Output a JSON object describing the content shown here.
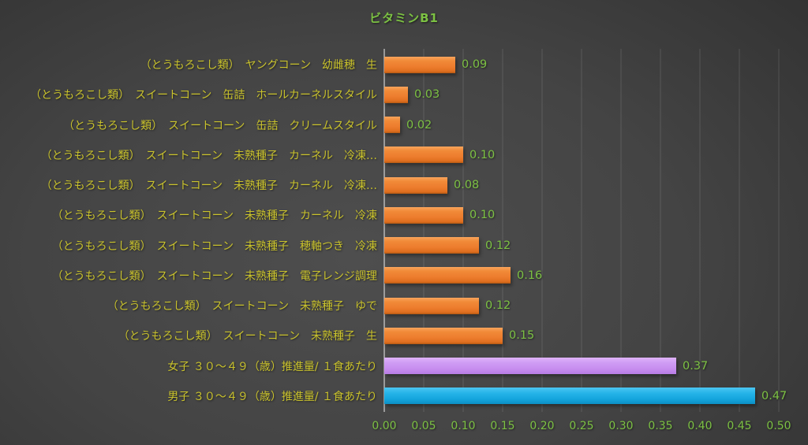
{
  "chart_data": {
    "type": "bar",
    "orientation": "horizontal",
    "title": "ビタミンB1",
    "categories": [
      "（とうもろこし類）　ヤングコーン　幼雌穂　生",
      "（とうもろこし類）　スイートコーン　缶詰　ホールカーネルスタイル",
      "（とうもろこし類）　スイートコーン　缶詰　クリームスタイル",
      "（とうもろこし類）　スイートコーン　未熟種子　カーネル　冷凍…",
      "（とうもろこし類）　スイートコーン　未熟種子　カーネル　冷凍…",
      "（とうもろこし類）　スイートコーン　未熟種子　カーネル　冷凍",
      "（とうもろこし類）　スイートコーン　未熟種子　穂軸つき　冷凍",
      "（とうもろこし類）　スイートコーン　未熟種子　電子レンジ調理",
      "（とうもろこし類）　スイートコーン　未熟種子　ゆで",
      "（とうもろこし類）　スイートコーン　未熟種子　生",
      "女子 ３０～４９（歳）推進量/ １食あたり",
      "男子 ３０～４９（歳）推進量/ １食あたり"
    ],
    "values": [
      0.09,
      0.03,
      0.02,
      0.1,
      0.08,
      0.1,
      0.12,
      0.16,
      0.12,
      0.15,
      0.37,
      0.47
    ],
    "value_labels": [
      "0.09",
      "0.03",
      "0.02",
      "0.10",
      "0.08",
      "0.10",
      "0.12",
      "0.16",
      "0.12",
      "0.15",
      "0.37",
      "0.47"
    ],
    "bar_colors": [
      "orange",
      "orange",
      "orange",
      "orange",
      "orange",
      "orange",
      "orange",
      "orange",
      "orange",
      "orange",
      "purple",
      "blue"
    ],
    "xlim": [
      0,
      0.5
    ],
    "xticks": [
      "0.00",
      "0.05",
      "0.10",
      "0.15",
      "0.20",
      "0.25",
      "0.30",
      "0.35",
      "0.40",
      "0.45",
      "0.50"
    ],
    "grid": true,
    "legend": false
  },
  "colors": {
    "bar_orange": "#ED7D2E",
    "bar_purple": "#C88FF0",
    "bar_blue": "#18ACE4",
    "value_green": "#7CC143",
    "category_yellow": "#C9C22C",
    "background_center": "#4E4E4E",
    "background_edge": "#1F1F1F"
  }
}
